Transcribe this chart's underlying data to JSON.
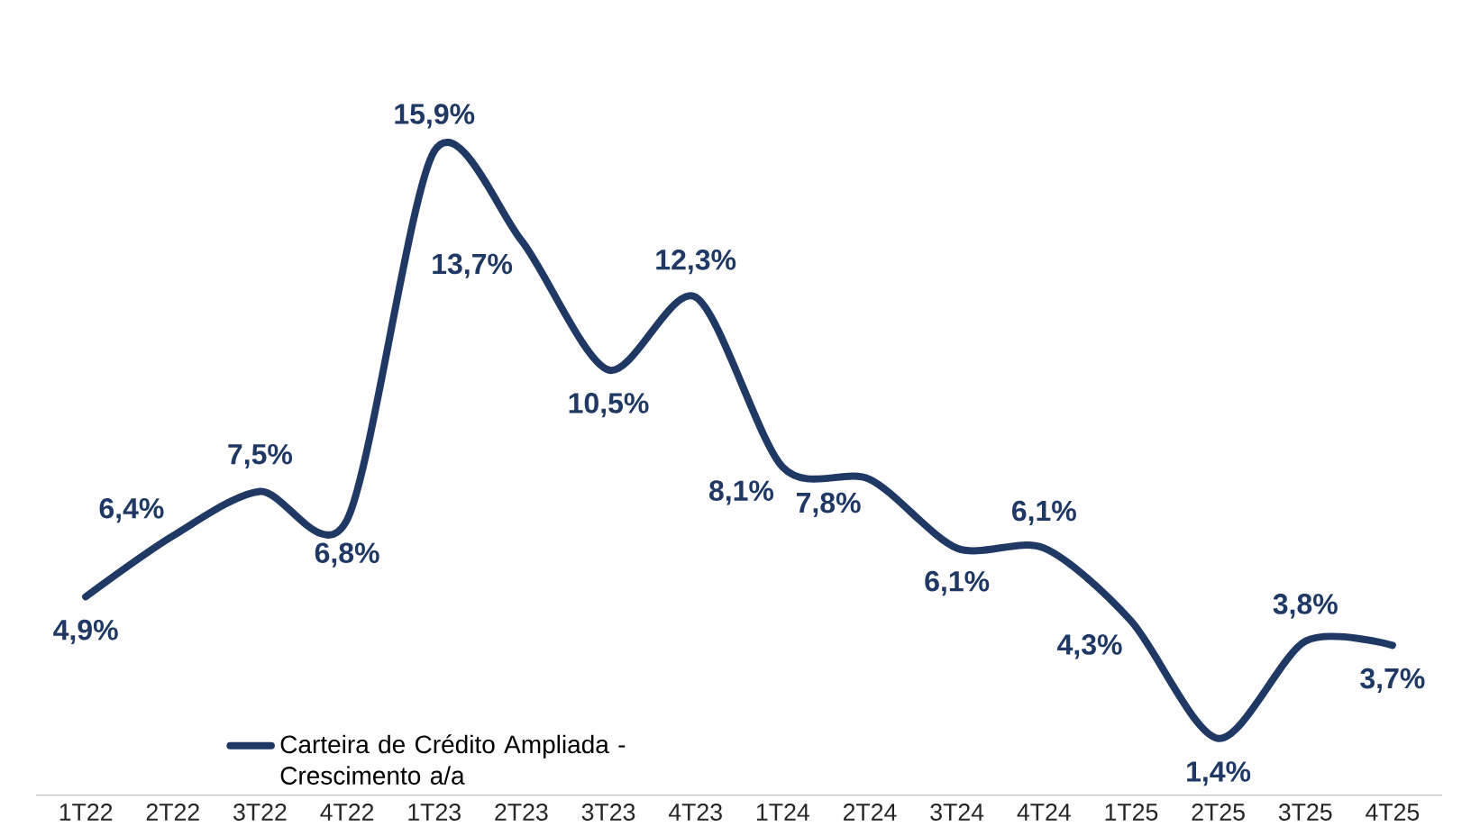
{
  "chart_data": {
    "type": "line",
    "categories": [
      "1T22",
      "2T22",
      "3T22",
      "4T22",
      "1T23",
      "2T23",
      "3T23",
      "4T23",
      "1T24",
      "2T24",
      "3T24",
      "4T24",
      "1T25",
      "2T25",
      "3T25",
      "4T25"
    ],
    "series": [
      {
        "name": "Carteira de Crédito Ampliada - Crescimento a/a",
        "color": "#1f3864",
        "values": [
          4.9,
          6.4,
          7.5,
          6.8,
          15.9,
          13.7,
          10.5,
          12.3,
          8.1,
          7.8,
          6.1,
          6.1,
          4.3,
          1.4,
          3.8,
          3.7
        ],
        "value_labels": [
          "4,9%",
          "6,4%",
          "7,5%",
          "6,8%",
          "15,9%",
          "13,7%",
          "10,5%",
          "12,3%",
          "8,1%",
          "7,8%",
          "6,1%",
          "6,1%",
          "4,3%",
          "1,4%",
          "3,8%",
          "3,7%"
        ]
      }
    ],
    "legend": "bottom left",
    "marker": "none",
    "line_style": "solid"
  }
}
